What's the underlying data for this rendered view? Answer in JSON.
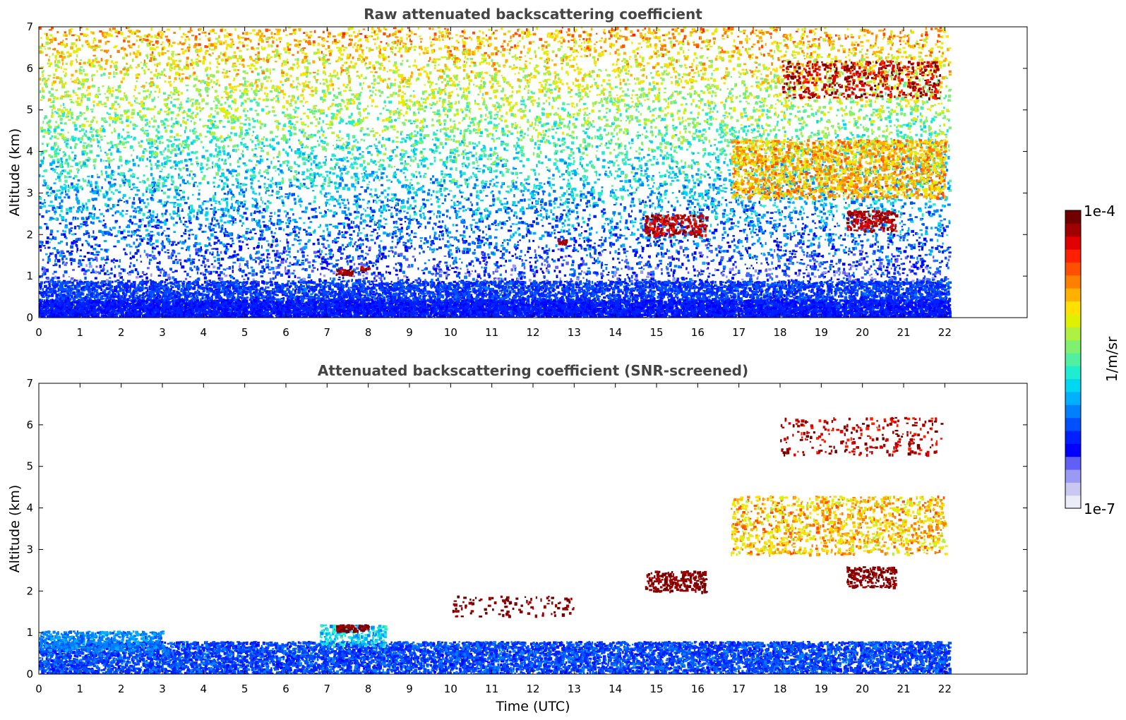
{
  "chart_data": [
    {
      "type": "heatmap",
      "title": "Raw attenuated backscattering coefficient",
      "xlabel": "",
      "ylabel": "Altitude (km)",
      "xlim": [
        0,
        24
      ],
      "ylim": [
        0,
        7
      ],
      "x_ticks": [
        "0",
        "1",
        "2",
        "3",
        "4",
        "5",
        "6",
        "7",
        "8",
        "9",
        "10",
        "11",
        "12",
        "13",
        "14",
        "15",
        "16",
        "17",
        "18",
        "19",
        "20",
        "21",
        "22"
      ],
      "y_ticks": [
        "0",
        "1",
        "2",
        "3",
        "4",
        "5",
        "6",
        "7"
      ],
      "data_extent_hours": [
        0,
        22.1
      ],
      "features": [
        {
          "kind": "boundary_layer",
          "t0": 0,
          "t1": 22.1,
          "z0": 0,
          "z1": 0.9
        },
        {
          "kind": "aerosol_layer",
          "t": 7.4,
          "z": 1.1
        },
        {
          "kind": "aerosol_layer",
          "t": 7.9,
          "z": 1.2
        },
        {
          "kind": "cloud_layer",
          "t0": 14.7,
          "t1": 16.2,
          "z0": 2.0,
          "z1": 2.5
        },
        {
          "kind": "cloud_layer",
          "t0": 19.6,
          "t1": 20.8,
          "z0": 2.1,
          "z1": 2.6
        },
        {
          "kind": "cloud_layer",
          "t0": 16.8,
          "t1": 22.0,
          "z0": 2.9,
          "z1": 4.3
        },
        {
          "kind": "cirrus_layer",
          "t0": 18.0,
          "t1": 21.9,
          "z0": 5.3,
          "z1": 6.2
        }
      ]
    },
    {
      "type": "heatmap",
      "title": "Attenuated backscattering coefficient (SNR-screened)",
      "xlabel": "Time (UTC)",
      "ylabel": "Altitude (km)",
      "xlim": [
        0,
        24
      ],
      "ylim": [
        0,
        7
      ],
      "x_ticks": [
        "0",
        "1",
        "2",
        "3",
        "4",
        "5",
        "6",
        "7",
        "8",
        "9",
        "10",
        "11",
        "12",
        "13",
        "14",
        "15",
        "16",
        "17",
        "18",
        "19",
        "20",
        "21",
        "22"
      ],
      "y_ticks": [
        "0",
        "1",
        "2",
        "3",
        "4",
        "5",
        "6",
        "7"
      ],
      "data_extent_hours": [
        0,
        22.1
      ]
    }
  ],
  "colorbar": {
    "top_label": "1e-4",
    "bottom_label": "1e-7",
    "unit": "1/m/sr",
    "scale": "log",
    "colors": [
      "#ececf8",
      "#c8c8f0",
      "#9a9af4",
      "#6060f8",
      "#0000ff",
      "#0020ff",
      "#0050ff",
      "#0080ff",
      "#00b0ff",
      "#00d8f0",
      "#20ecd0",
      "#50f0a0",
      "#80f070",
      "#b0f040",
      "#e0f000",
      "#ffe000",
      "#ffb000",
      "#ff8000",
      "#ff5000",
      "#ff2000",
      "#e00000",
      "#a00000",
      "#700000"
    ]
  }
}
